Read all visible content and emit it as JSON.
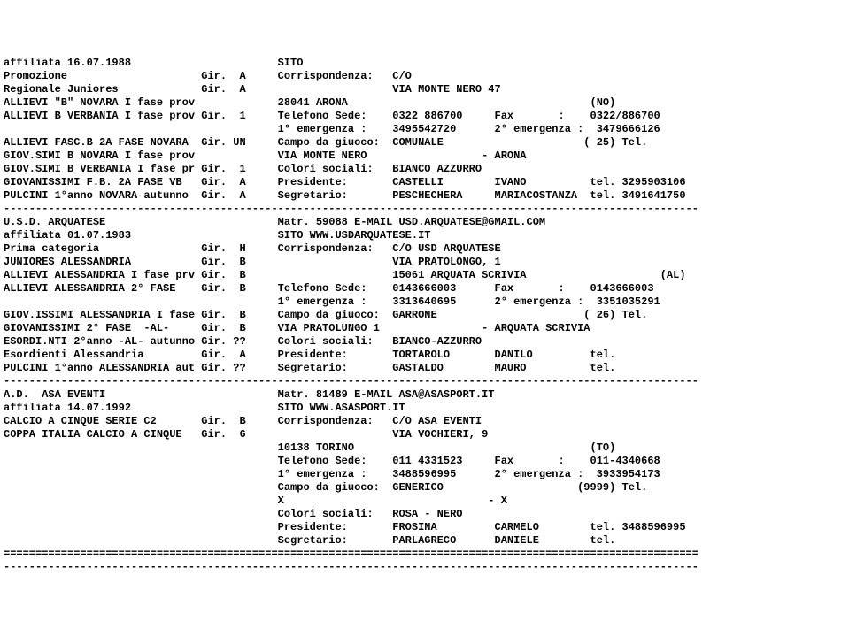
{
  "lines": [
    "affiliata 16.07.1988                       SITO ",
    "Promozione                     Gir.  A     Corrispondenza:   C/O ",
    "Regionale Juniores             Gir.  A                       VIA MONTE NERO 47",
    "ALLIEVI \"B\" NOVARA I fase prov             28041 ARONA                                      (NO)",
    "ALLIEVI B VERBANIA I fase prov Gir.  1     Telefono Sede:    0322 886700     Fax       :    0322/886700",
    "                                           1° emergenza :    3495542720      2° emergenza :  3479666126",
    "ALLIEVI FASC.B 2A FASE NOVARA  Gir. UN     Campo da giuoco:  COMUNALE                      ( 25) Tel.",
    "GIOV.SIMI B NOVARA I fase prov             VIA MONTE NERO                  - ARONA",
    "GIOV.SIMI B VERBANIA I fase pr Gir.  1     Colori sociali:   BIANCO AZZURRO",
    "GIOVANISSIMI F.B. 2A FASE VB   Gir.  A     Presidente:       CASTELLI        IVANO          tel. 3295903106",
    "PULCINI 1°anno NOVARA autunno  Gir.  A     Segretario:       PESCHECHERA     MARIACOSTANZA  tel. 3491641750",
    "-------------------------------------------------------------------------------------------------------------",
    "U.S.D. ARQUATESE                           Matr. 59088 E-MAIL USD.ARQUATESE@GMAIL.COM",
    "affiliata 01.07.1983                       SITO WWW.USDARQUATESE.IT",
    "Prima categoria                Gir.  H     Corrispondenza:   C/O USD ARQUATESE",
    "JUNIORES ALESSANDRIA           Gir.  B                       VIA PRATOLONGO, 1",
    "ALLIEVI ALESSANDRIA I fase prv Gir.  B                       15061 ARQUATA SCRIVIA                     (AL)",
    "ALLIEVI ALESSANDRIA 2° FASE    Gir.  B     Telefono Sede:    0143666003      Fax       :    0143666003",
    "                                           1° emergenza :    3313640695      2° emergenza :  3351035291",
    "GIOV.ISSIMI ALESSANDRIA I fase Gir.  B     Campo da giuoco:  GARRONE                       ( 26) Tel.",
    "GIOVANISSIMI 2° FASE  -AL-     Gir.  B     VIA PRATOLUNGO 1                - ARQUATA SCRIVIA",
    "ESORDI.NTI 2°anno -AL- autunno Gir. ??     Colori sociali:   BIANCO-AZZURRO",
    "Esordienti Alessandria         Gir.  A     Presidente:       TORTAROLO       DANILO         tel.",
    "PULCINI 1°anno ALESSANDRIA aut Gir. ??     Segretario:       GASTALDO        MAURO          tel.",
    "-------------------------------------------------------------------------------------------------------------",
    "A.D.  ASA EVENTI                           Matr. 81489 E-MAIL ASA@ASASPORT.IT",
    "affiliata 14.07.1992                       SITO WWW.ASASPORT.IT",
    "CALCIO A CINQUE SERIE C2       Gir.  B     Corrispondenza:   C/O ASA EVENTI",
    "COPPA ITALIA CALCIO A CINQUE   Gir.  6                       VIA VOCHIERI, 9",
    "                                           10138 TORINO                                     (TO)",
    "                                           Telefono Sede:    011 4331523     Fax       :    011-4340668",
    "                                           1° emergenza :    3488596995      2° emergenza :  3933954173",
    "                                           Campo da giuoco:  GENERICO                     (9999) Tel.",
    "                                           X                                - X",
    "                                           Colori sociali:   ROSA - NERO",
    "                                           Presidente:       FROSINA         CARMELO        tel. 3488596995",
    "                                           Segretario:       PARLAGRECO      DANIELE        tel.",
    "=============================================================================================================",
    "-------------------------------------------------------------------------------------------------------------"
  ]
}
